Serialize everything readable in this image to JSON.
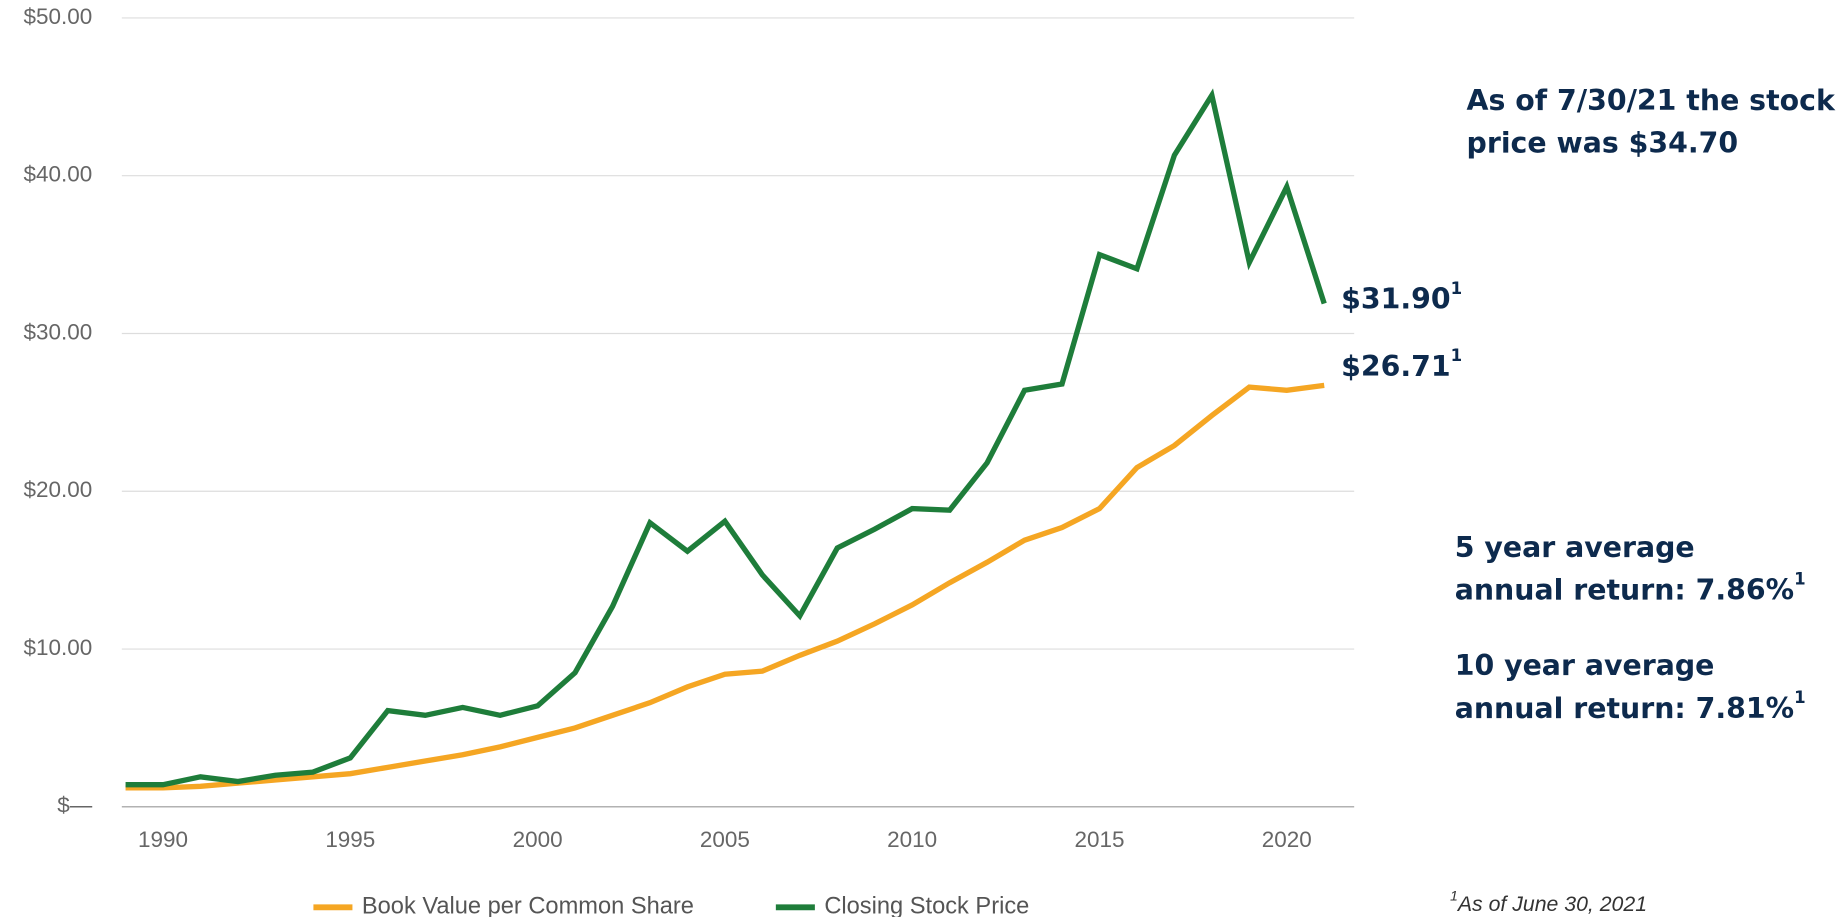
{
  "chart_data": {
    "type": "line",
    "x": [
      1989,
      1990,
      1991,
      1992,
      1993,
      1994,
      1995,
      1996,
      1997,
      1998,
      1999,
      2000,
      2001,
      2002,
      2003,
      2004,
      2005,
      2006,
      2007,
      2008,
      2009,
      2010,
      2011,
      2012,
      2013,
      2014,
      2015,
      2016,
      2017,
      2018,
      2019,
      2020,
      2021
    ],
    "series": [
      {
        "name": "Book Value per Common Share",
        "color": "#f5a623",
        "values": [
          1.2,
          1.2,
          1.3,
          1.5,
          1.7,
          1.9,
          2.1,
          2.5,
          2.9,
          3.3,
          3.8,
          4.4,
          5.0,
          5.8,
          6.6,
          7.6,
          8.4,
          8.6,
          9.6,
          10.5,
          11.6,
          12.8,
          14.2,
          15.5,
          16.9,
          17.7,
          18.9,
          21.5,
          22.9,
          24.8,
          26.6,
          26.4,
          26.71
        ]
      },
      {
        "name": "Closing Stock Price",
        "color": "#1e7d3a",
        "values": [
          1.4,
          1.4,
          1.9,
          1.6,
          2.0,
          2.2,
          3.1,
          6.1,
          5.8,
          6.3,
          5.8,
          6.4,
          8.5,
          12.7,
          18.0,
          16.2,
          18.1,
          14.7,
          12.1,
          16.4,
          17.6,
          18.9,
          18.8,
          21.8,
          26.4,
          26.8,
          35.0,
          34.1,
          41.3,
          45.1,
          34.5,
          39.3,
          31.9
        ]
      }
    ],
    "xlim": [
      1988.9,
      2021.8
    ],
    "xticks": [
      1990,
      1995,
      2000,
      2005,
      2010,
      2015,
      2020
    ],
    "ylim": [
      0,
      50
    ],
    "yticks": [
      {
        "value": 0,
        "label": "$—"
      },
      {
        "value": 10,
        "label": "$10.00"
      },
      {
        "value": 20,
        "label": "$20.00"
      },
      {
        "value": 30,
        "label": "$30.00"
      },
      {
        "value": 40,
        "label": "$40.00"
      },
      {
        "value": 50,
        "label": "$50.00"
      }
    ],
    "grid": true,
    "annotations": [
      {
        "lines": [
          "As of 7/30/21 the stock",
          "price was $34.70"
        ]
      },
      {
        "lines": [
          "$31.90"
        ],
        "sup": "1"
      },
      {
        "lines": [
          "$26.71"
        ],
        "sup": "1"
      },
      {
        "lines": [
          "5 year average",
          "annual return: 7.86%"
        ],
        "sup": "1"
      },
      {
        "lines": [
          "10 year average",
          "annual return: 7.81%"
        ],
        "sup": "1"
      }
    ],
    "footnote": {
      "sup": "1",
      "text": "As of June 30, 2021"
    }
  }
}
